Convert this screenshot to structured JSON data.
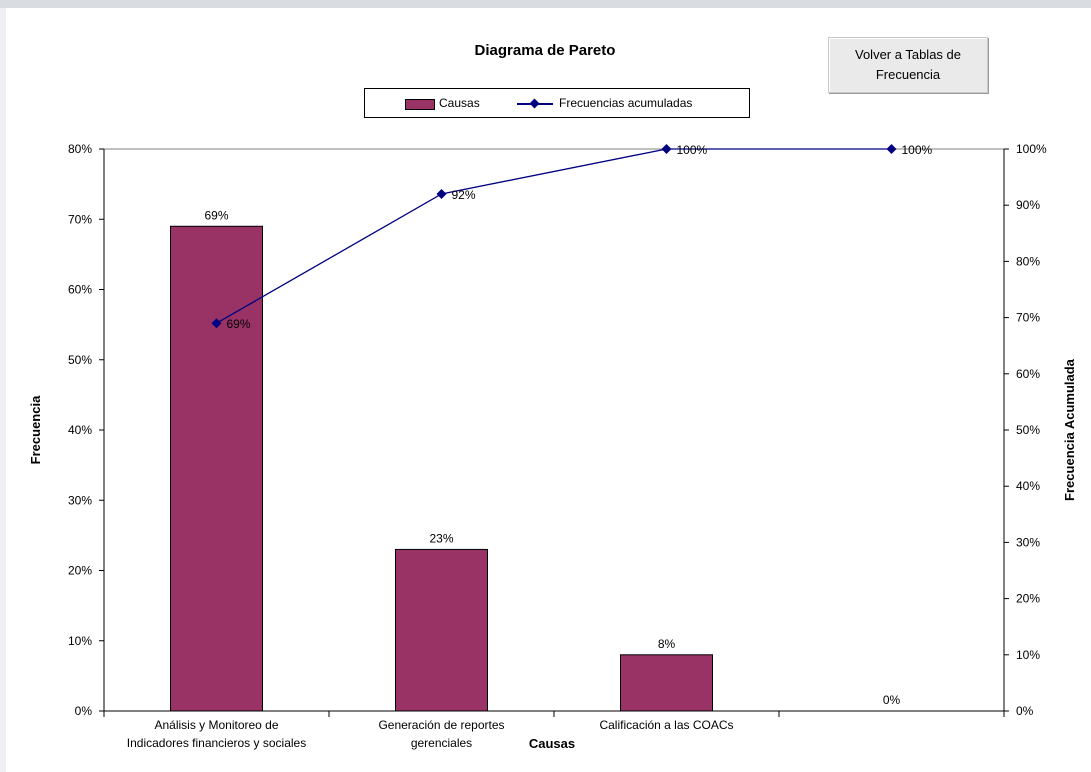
{
  "title": "Diagrama de Pareto",
  "nav_button": "Volver a Tablas de Frecuencia",
  "legend": {
    "bars": "Causas",
    "line": "Frecuencias acumuladas"
  },
  "colors": {
    "bar": "#993366",
    "line": "#000080",
    "axis": "#000000"
  },
  "chart_data": {
    "type": "bar",
    "title": "Diagrama de Pareto",
    "xlabel": "Causas",
    "ylabel": "Frecuencia",
    "y2label": "Frecuencia Acumulada",
    "categories": [
      [
        "Análisis y Monitoreo de",
        "Indicadores financieros y sociales"
      ],
      [
        "Generación de reportes",
        "gerenciales"
      ],
      [
        "Calificación a las COACs"
      ],
      [
        ""
      ]
    ],
    "series": [
      {
        "name": "Causas",
        "type": "bar",
        "axis": "left",
        "values": [
          69,
          23,
          8,
          0
        ],
        "labels": [
          "69%",
          "23%",
          "8%",
          "0%"
        ]
      },
      {
        "name": "Frecuencias acumuladas",
        "type": "line",
        "axis": "right",
        "values": [
          69,
          92,
          100,
          100
        ],
        "labels": [
          "69%",
          "92%",
          "100%",
          "100%"
        ]
      }
    ],
    "ylim": [
      0,
      80
    ],
    "y_ticks": [
      "0%",
      "10%",
      "20%",
      "30%",
      "40%",
      "50%",
      "60%",
      "70%",
      "80%"
    ],
    "y2lim": [
      0,
      100
    ],
    "y2_ticks": [
      "0%",
      "10%",
      "20%",
      "30%",
      "40%",
      "50%",
      "60%",
      "70%",
      "80%",
      "90%",
      "100%"
    ],
    "grid": false,
    "legend_position": "top-center"
  }
}
